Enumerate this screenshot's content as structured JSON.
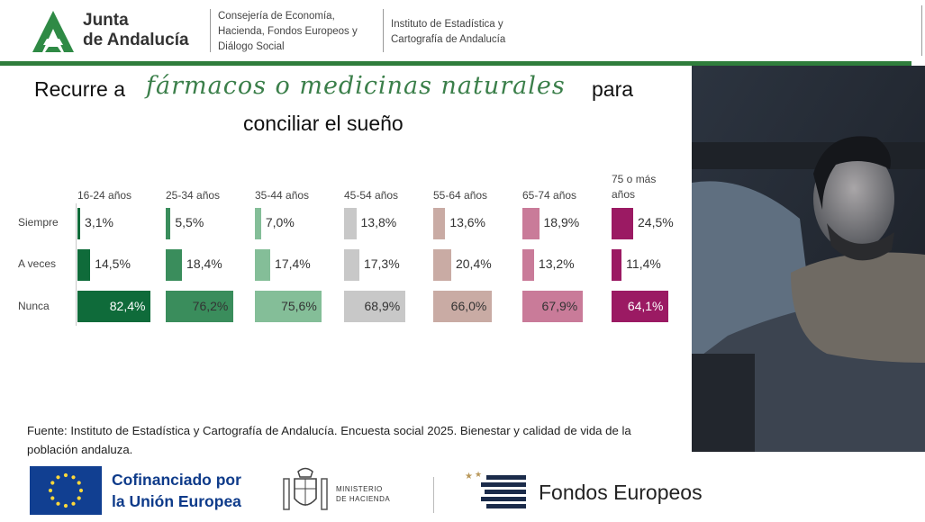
{
  "header": {
    "logo_line1": "Junta",
    "logo_line2": "de Andalucía",
    "consejeria": [
      "Consejería de Economía,",
      "Hacienda, Fondos Europeos y",
      "Diálogo Social"
    ],
    "instituto": [
      "Instituto de Estadística y",
      "Cartografía de Andalucía"
    ]
  },
  "title": {
    "part1": "Recurre a",
    "highlight": "fármacos o medicinas naturales",
    "part2": "para",
    "line2": "conciliar el sueño"
  },
  "chart_data": {
    "type": "bar",
    "categories": [
      "16-24 años",
      "25-34 años",
      "35-44 años",
      "45-54 años",
      "55-64 años",
      "65-74 años",
      "75 o más años"
    ],
    "rows": [
      "Siempre",
      "A veces",
      "Nunca"
    ],
    "series": [
      {
        "name": "Siempre",
        "values": [
          3.1,
          5.5,
          7.0,
          13.8,
          13.6,
          18.9,
          24.5
        ],
        "labels": [
          "3,1%",
          "5,5%",
          "7,0%",
          "13,8%",
          "13,6%",
          "18,9%",
          "24,5%"
        ]
      },
      {
        "name": "A veces",
        "values": [
          14.5,
          18.4,
          17.4,
          17.3,
          20.4,
          13.2,
          11.4
        ],
        "labels": [
          "14,5%",
          "18,4%",
          "17,4%",
          "17,3%",
          "20,4%",
          "13,2%",
          "11,4%"
        ]
      },
      {
        "name": "Nunca",
        "values": [
          82.4,
          76.2,
          75.6,
          68.9,
          66.0,
          67.9,
          64.1
        ],
        "labels": [
          "82,4%",
          "76,2%",
          "75,6%",
          "68,9%",
          "66,0%",
          "67,9%",
          "64,1%"
        ]
      }
    ],
    "colors": [
      "#0f6b3a",
      "#3a8d5c",
      "#84be98",
      "#c8c8c8",
      "#c9aba4",
      "#c97b99",
      "#9b1a63"
    ]
  },
  "source": "Fuente: Instituto de Estadística y Cartografía de Andalucía. Encuesta social 2025. Bienestar y calidad de vida de la población andaluza.",
  "footer": {
    "eu_line1": "Cofinanciado por",
    "eu_line2": "la Unión Europea",
    "ministerio_line1": "MINISTERIO",
    "ministerio_line2": "DE HACIENDA",
    "fondos": "Fondos Europeos"
  }
}
